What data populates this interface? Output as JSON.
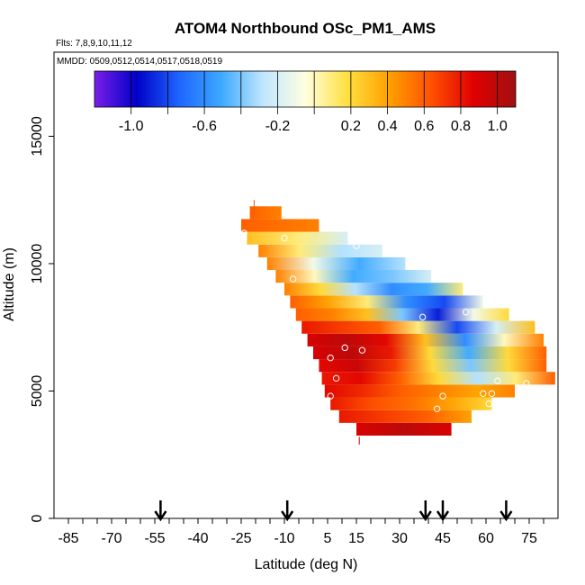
{
  "chart_data": {
    "type": "heatmap",
    "title": "ATOM4 Northbound OSc_PM1_AMS",
    "subtitle_flights": "Flts: 7,8,9,10,11,12",
    "subtitle_dates": "MMDD: 0509,0512,0514,0517,0518,0519",
    "xlabel": "Latitude (deg N)",
    "ylabel": "Altitude (m)",
    "xlim": [
      -90,
      85
    ],
    "ylim": [
      0,
      18300
    ],
    "x_ticks_labeled": [
      "-85",
      "-70",
      "-55",
      "-40",
      "-25",
      "-10",
      "5",
      "15",
      "30",
      "45",
      "60",
      "75"
    ],
    "x_tick_values": [
      -85,
      -70,
      -55,
      -40,
      -25,
      -10,
      5,
      15,
      30,
      45,
      60,
      75
    ],
    "y_ticks_labeled": [
      "0",
      "5000",
      "10000",
      "15000"
    ],
    "y_tick_values": [
      0,
      5000,
      10000,
      15000
    ],
    "colorbar": {
      "range": [
        -1.2,
        1.1
      ],
      "tick_labels": [
        "-1.0",
        "-0.6",
        "-0.2",
        "0.2",
        "0.4",
        "0.6",
        "0.8",
        "1.0"
      ],
      "tick_values": [
        -1.0,
        -0.6,
        -0.2,
        0.2,
        0.4,
        0.6,
        0.8,
        1.0
      ],
      "stops": [
        "#7a1fe8",
        "#0000c8",
        "#1e64ff",
        "#3ca8ff",
        "#bfe6ff",
        "#ffffe0",
        "#ffe040",
        "#ffa000",
        "#ff5000",
        "#e00000",
        "#a01010"
      ]
    },
    "profile_arrows_lat": [
      -53,
      -9,
      39,
      45,
      67
    ],
    "altitude_band_m": 500,
    "bands": [
      {
        "alt": 3500,
        "lat": [
          15,
          48
        ],
        "values": [
          0.9,
          1.0,
          0.9
        ]
      },
      {
        "alt": 4000,
        "lat": [
          9,
          55
        ],
        "values": [
          0.8,
          0.7,
          0.6,
          0.4
        ]
      },
      {
        "alt": 4500,
        "lat": [
          6,
          62
        ],
        "values": [
          0.8,
          0.65,
          0.55,
          0.4,
          0.2
        ]
      },
      {
        "alt": 5000,
        "lat": [
          4,
          70
        ],
        "values": [
          0.85,
          0.75,
          0.6,
          0.5,
          0.4,
          0.5
        ]
      },
      {
        "alt": 5500,
        "lat": [
          3,
          84
        ],
        "values": [
          0.8,
          0.85,
          0.6,
          0.2,
          -0.3,
          0.1,
          0.6
        ]
      },
      {
        "alt": 6000,
        "lat": [
          2,
          81
        ],
        "values": [
          0.85,
          0.95,
          0.7,
          0.2,
          -0.4,
          0.2,
          0.6
        ]
      },
      {
        "alt": 6500,
        "lat": [
          0,
          81
        ],
        "values": [
          0.9,
          1.0,
          0.8,
          0.2,
          -0.5,
          0.2,
          0.6
        ]
      },
      {
        "alt": 7000,
        "lat": [
          -2,
          80
        ],
        "values": [
          0.9,
          1.0,
          0.85,
          0.3,
          -0.6,
          0.0,
          0.5
        ]
      },
      {
        "alt": 7500,
        "lat": [
          -4,
          77
        ],
        "values": [
          0.8,
          0.7,
          0.6,
          0.1,
          -0.8,
          -0.2,
          0.3
        ]
      },
      {
        "alt": 8000,
        "lat": [
          -6,
          68
        ],
        "values": [
          0.6,
          0.5,
          0.3,
          -0.4,
          -0.9,
          -0.1,
          0.2
        ]
      },
      {
        "alt": 8500,
        "lat": [
          -8,
          59
        ],
        "values": [
          0.6,
          0.4,
          0.1,
          -0.6,
          -0.8,
          -0.1
        ]
      },
      {
        "alt": 9000,
        "lat": [
          -10,
          52
        ],
        "values": [
          0.5,
          0.2,
          -0.3,
          -0.6,
          -0.5,
          0.1
        ]
      },
      {
        "alt": 9500,
        "lat": [
          -13,
          41
        ],
        "values": [
          0.5,
          0.0,
          -0.5,
          -0.4,
          -0.2
        ]
      },
      {
        "alt": 10000,
        "lat": [
          -16,
          32
        ],
        "values": [
          0.5,
          -0.1,
          -0.5,
          -0.3
        ]
      },
      {
        "alt": 10500,
        "lat": [
          -19,
          24
        ],
        "values": [
          0.5,
          0.1,
          -0.3,
          -0.2
        ]
      },
      {
        "alt": 11000,
        "lat": [
          -23,
          12
        ],
        "values": [
          0.3,
          0.1,
          -0.2
        ]
      },
      {
        "alt": 11500,
        "lat": [
          -25,
          2
        ],
        "values": [
          0.6,
          0.5
        ]
      },
      {
        "alt": 12000,
        "lat": [
          -22,
          -11
        ],
        "values": [
          0.6,
          0.5
        ]
      }
    ],
    "marked_points": [
      {
        "lat": -24,
        "alt": 11200
      },
      {
        "lat": -10,
        "alt": 11000
      },
      {
        "lat": 15,
        "alt": 10700
      },
      {
        "lat": -7,
        "alt": 9400
      },
      {
        "lat": 38,
        "alt": 7900
      },
      {
        "lat": 53,
        "alt": 8100
      },
      {
        "lat": 82,
        "alt": 7300
      },
      {
        "lat": 11,
        "alt": 6700
      },
      {
        "lat": 17,
        "alt": 6600
      },
      {
        "lat": 6,
        "alt": 6300
      },
      {
        "lat": 8,
        "alt": 5500
      },
      {
        "lat": 64,
        "alt": 5400
      },
      {
        "lat": 74,
        "alt": 5300
      },
      {
        "lat": 84,
        "alt": 5100
      },
      {
        "lat": 6,
        "alt": 4800
      },
      {
        "lat": 45,
        "alt": 4800
      },
      {
        "lat": 59,
        "alt": 4900
      },
      {
        "lat": 62,
        "alt": 4900
      },
      {
        "lat": 61,
        "alt": 4500
      },
      {
        "lat": 43,
        "alt": 4300
      }
    ]
  }
}
